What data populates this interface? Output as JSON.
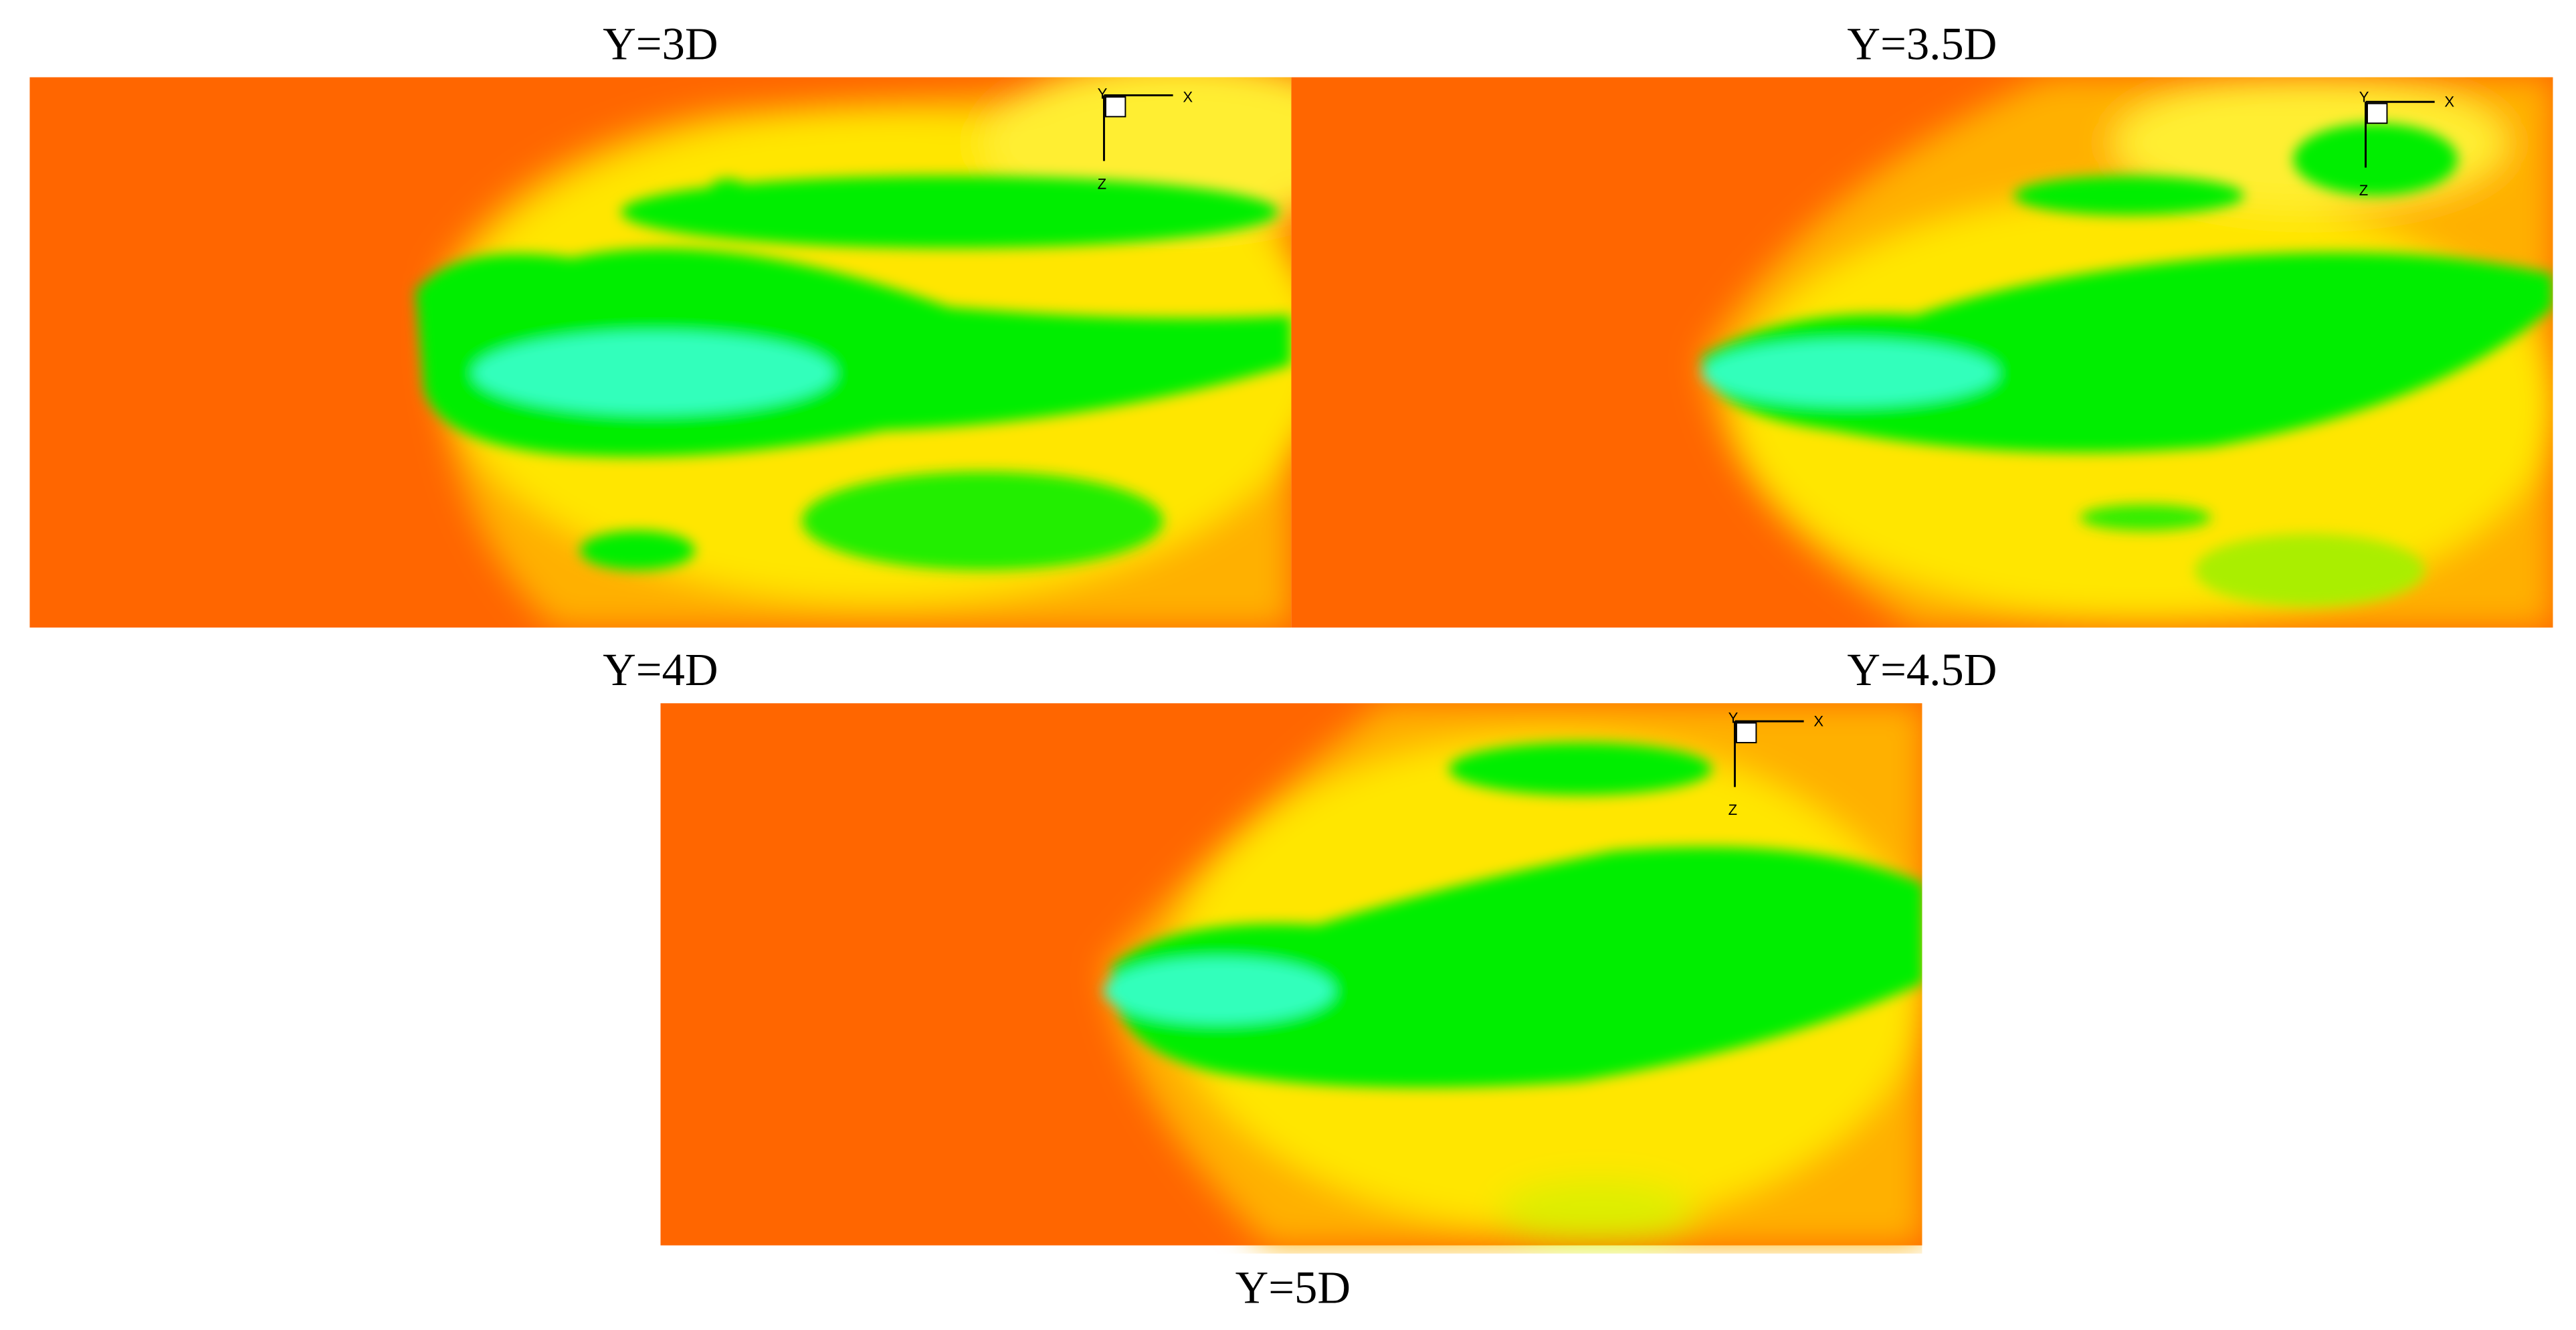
{
  "panel_labels": [
    "Y=3D",
    "Y=3.5D",
    "Y=4D",
    "Y=4.5D",
    "Y=5D"
  ],
  "axis_triad": {
    "x": "X",
    "y": "Y",
    "z": "Z"
  }
}
